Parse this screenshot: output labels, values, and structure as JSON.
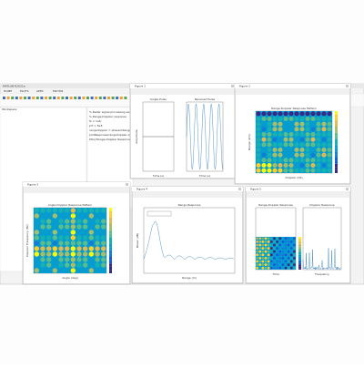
{
  "desktop": {
    "editor": {
      "title": "MATLAB R2021a",
      "tabs": [
        "HOME",
        "PLOTS",
        "APPS",
        "EDITOR"
      ],
      "workspace_title": "Workspace",
      "lines": [
        "% Radar signal processing example",
        "% Range-Doppler response",
        "fs = 1e6;",
        "prf = 5e3;",
        "rangedoppler = phased.RangeDopplerResponse;",
        "plotResponse(rangedoppler,x);",
        "title('Range-Doppler Response Pattern')"
      ]
    },
    "windows": [
      {
        "title": "Figure 1",
        "plots": [
          {
            "title": "Single Pulse",
            "xlabel": "Time (s)",
            "ylabel": "Amplitude"
          },
          {
            "title": "Received Pulse",
            "xlabel": "Time (s)",
            "ylabel": ""
          }
        ]
      },
      {
        "title": "Figure 2",
        "plots": [
          {
            "title": "Range-Doppler Response Pattern",
            "xlabel": "Doppler (Hz)",
            "ylabel": "Range (km)"
          }
        ]
      },
      {
        "title": "Figure 3",
        "plots": [
          {
            "title": "Angle-Doppler Response Pattern",
            "xlabel": "Angle (deg)",
            "ylabel": "Doppler Frequency (Hz)"
          }
        ]
      },
      {
        "title": "Figure 4",
        "plots": [
          {
            "title": "Range Response",
            "xlabel": "Range (m)",
            "ylabel": "Power (dB)"
          }
        ]
      },
      {
        "title": "Figure 5",
        "plots": [
          {
            "title": "Range-Doppler Response",
            "xlabel": "Time",
            "ylabel": ""
          },
          {
            "title": "Doppler Response",
            "xlabel": "Frequency",
            "ylabel": ""
          }
        ]
      }
    ]
  }
}
